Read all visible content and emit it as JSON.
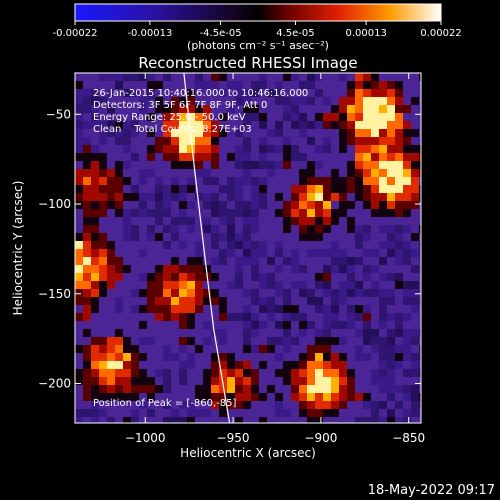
{
  "colorbar": {
    "ticks": [
      "-0.00022",
      "-0.00013",
      "-4.5e-05",
      "4.5e-05",
      "0.00013",
      "0.00022"
    ],
    "tick_values": [
      -0.00022,
      -0.00013,
      -4.5e-05,
      4.5e-05,
      0.00013,
      0.00022
    ],
    "range": [
      -0.00022,
      0.00022
    ],
    "unit_label": "(photons cm⁻² s⁻¹ asec⁻²)"
  },
  "chart_data": {
    "type": "heatmap",
    "title": "Reconstructed RHESSI Image",
    "xlabel": "Heliocentric X (arcsec)",
    "ylabel": "Heliocentric Y (arcsec)",
    "xlim": [
      -1040,
      -843
    ],
    "ylim": [
      -222,
      -27
    ],
    "x_ticks": [
      -1000,
      -950,
      -900,
      -850
    ],
    "y_ticks": [
      -50,
      -100,
      -150,
      -200
    ],
    "x_tick_labels": [
      "−1000",
      "−950",
      "−900",
      "−850"
    ],
    "y_tick_labels": [
      "−50",
      "−100",
      "−150",
      "−200"
    ],
    "peak": {
      "x": -860,
      "y": -85
    },
    "limb_curve": [
      [
        -978,
        -27
      ],
      [
        -972,
        -80
      ],
      [
        -966,
        -130
      ],
      [
        -961,
        -170
      ],
      [
        -952,
        -222
      ]
    ],
    "bright_regions": [
      {
        "x": -870,
        "y": -50,
        "level": 1.0
      },
      {
        "x": -860,
        "y": -85,
        "level": 1.0
      },
      {
        "x": -975,
        "y": -60,
        "level": 0.9
      },
      {
        "x": -1035,
        "y": -135,
        "level": 0.85
      },
      {
        "x": -900,
        "y": -200,
        "level": 0.85
      },
      {
        "x": -1020,
        "y": -190,
        "level": 0.75
      },
      {
        "x": -980,
        "y": -150,
        "level": 0.7
      },
      {
        "x": -905,
        "y": -100,
        "level": 0.6
      },
      {
        "x": -950,
        "y": -200,
        "level": 0.55
      },
      {
        "x": -1030,
        "y": -90,
        "level": 0.5
      }
    ],
    "annotations": [
      "26-Jan-2015 10:40:16.000 to 10:46:16.000",
      "Detectors: 3F 5F 6F 7F 8F 9F, Att 0",
      "Energy Range: 25.0 - 50.0 keV",
      "Clean    Total Counts: 8.27E+03"
    ],
    "peak_label": "Position of Peak = [-860,-85]"
  },
  "footer": {
    "timestamp": "18-May-2022 09:17"
  }
}
